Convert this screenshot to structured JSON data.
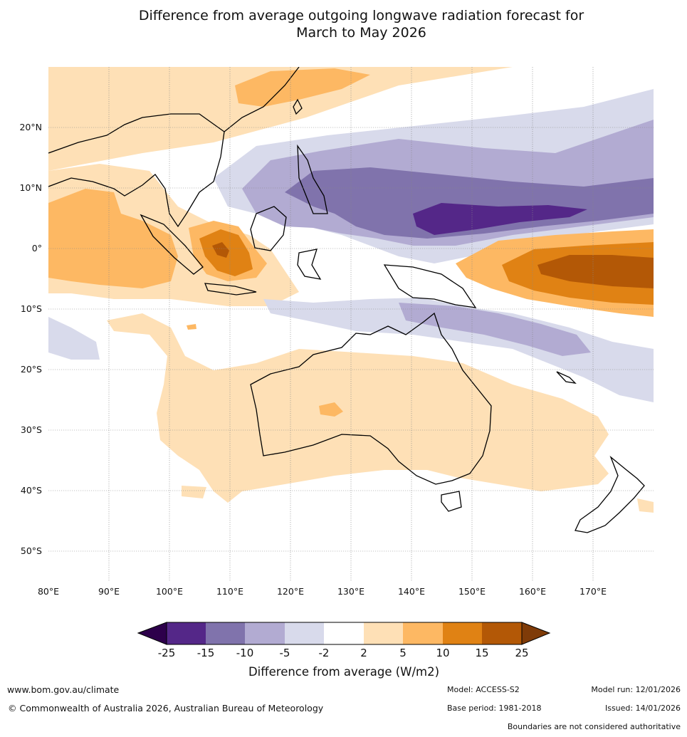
{
  "title_line1": "Difference from average outgoing longwave radiation forecast for",
  "title_line2": "March to May 2026",
  "map": {
    "lat_labels": [
      "20°N",
      "10°N",
      "0°",
      "10°S",
      "20°S",
      "30°S",
      "40°S",
      "50°S"
    ],
    "lon_labels": [
      "80°E",
      "90°E",
      "100°E",
      "110°E",
      "120°E",
      "130°E",
      "140°E",
      "150°E",
      "160°E",
      "170°E"
    ]
  },
  "colorbar": {
    "title": "Difference from average (W/m2)",
    "ticks": [
      "-25",
      "-15",
      "-10",
      "-5",
      "-2",
      "2",
      "5",
      "10",
      "15",
      "25"
    ],
    "colors": {
      "under": "#2d004b",
      "bins": [
        "#542788",
        "#8073ac",
        "#b2abd2",
        "#d8daeb",
        "#ffffff",
        "#fee0b6",
        "#fdb863",
        "#e08214",
        "#b35806"
      ],
      "over": "#7f3b08"
    }
  },
  "footer": {
    "website": "www.bom.gov.au/climate",
    "copyright": "© Commonwealth of Australia 2026, Australian Bureau of Meteorology",
    "model": "Model: ACCESS-S2",
    "base_period": "Base period: 1981-2018",
    "model_run": "Model run: 12/01/2026",
    "issued": "Issued: 14/01/2026",
    "disclaimer": "Boundaries are not considered authoritative"
  }
}
